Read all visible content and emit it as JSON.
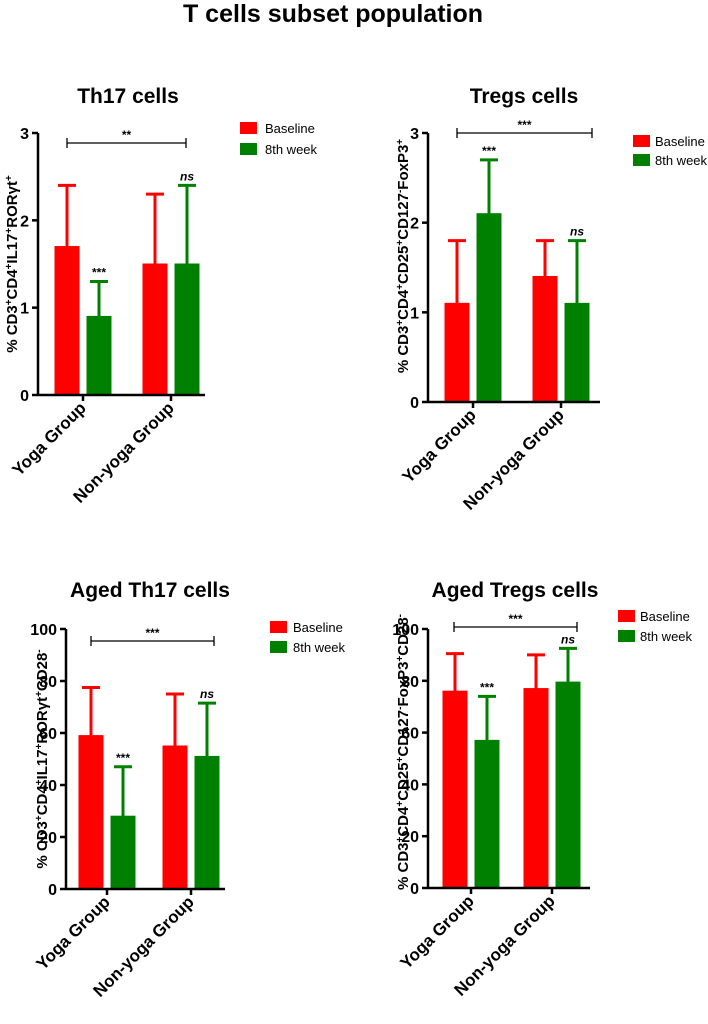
{
  "figure_title": "T cells subset population",
  "colors": {
    "baseline": "#ff0000",
    "baseline_light": "#ee4444",
    "week8": "#008000"
  },
  "chart_data": [
    {
      "type": "bar",
      "title": "Th17 cells",
      "ylabel_parts": [
        [
          "% CD3",
          ""
        ],
        [
          "+",
          "sup"
        ],
        [
          "CD4",
          ""
        ],
        [
          "+",
          "sup"
        ],
        [
          "IL17",
          ""
        ],
        [
          "+",
          "sup"
        ],
        [
          "RORγt",
          ""
        ],
        [
          "+",
          "sup"
        ]
      ],
      "categories": [
        "Yoga Group",
        "Non-yoga Group"
      ],
      "ylim": [
        0,
        3
      ],
      "yticks": [
        0,
        1,
        2,
        3
      ],
      "series": [
        {
          "name": "Baseline",
          "values": [
            1.7,
            1.5
          ],
          "errors": [
            0.7,
            0.8
          ]
        },
        {
          "name": "8th week",
          "values": [
            0.9,
            1.5
          ],
          "errors": [
            0.4,
            0.9
          ]
        }
      ],
      "bar_annotations": [
        [
          "",
          ""
        ],
        [
          "***",
          "ns"
        ]
      ],
      "bracket_label": "**",
      "legend": [
        "Baseline",
        "8th week"
      ],
      "legend_placement": "top-right"
    },
    {
      "type": "bar",
      "title": "Tregs cells",
      "ylabel_parts": [
        [
          "% CD3",
          ""
        ],
        [
          "+",
          "sup"
        ],
        [
          "CD4",
          ""
        ],
        [
          "+",
          "sup"
        ],
        [
          "CD25",
          ""
        ],
        [
          "+",
          "sup"
        ],
        [
          "CD127",
          ""
        ],
        [
          "-",
          "sup"
        ],
        [
          "FoxP3",
          ""
        ],
        [
          "+",
          "sup"
        ]
      ],
      "categories": [
        "Yoga Group",
        "Non-yoga Group"
      ],
      "ylim": [
        0,
        3
      ],
      "yticks": [
        0,
        1,
        2,
        3
      ],
      "series": [
        {
          "name": "Baseline",
          "values": [
            1.1,
            1.4
          ],
          "errors": [
            0.7,
            0.4
          ]
        },
        {
          "name": "8th week",
          "values": [
            2.1,
            1.1
          ],
          "errors": [
            0.6,
            0.7
          ]
        }
      ],
      "bar_annotations": [
        [
          "",
          ""
        ],
        [
          "***",
          "ns"
        ]
      ],
      "bracket_label": "***",
      "legend": [
        "Baseline",
        "8th week"
      ],
      "legend_placement": "top-right"
    },
    {
      "type": "bar",
      "title": "Aged Th17 cells",
      "ylabel_parts": [
        [
          "% CD3",
          ""
        ],
        [
          "+",
          "sup"
        ],
        [
          "CD4",
          ""
        ],
        [
          "+",
          "sup"
        ],
        [
          "IL17",
          ""
        ],
        [
          "+",
          "sup"
        ],
        [
          "RORγt",
          ""
        ],
        [
          "+",
          "sup"
        ],
        [
          "CD28",
          ""
        ],
        [
          "-",
          "sup"
        ]
      ],
      "categories": [
        "Yoga Group",
        "Non-yoga Group"
      ],
      "ylim": [
        0,
        100
      ],
      "yticks": [
        0,
        20,
        40,
        60,
        80,
        100
      ],
      "series": [
        {
          "name": "Baseline",
          "values": [
            59,
            55
          ],
          "errors": [
            18.5,
            20
          ]
        },
        {
          "name": "8th week",
          "values": [
            28,
            51
          ],
          "errors": [
            19,
            20.5
          ]
        }
      ],
      "bar_annotations": [
        [
          "",
          ""
        ],
        [
          "***",
          "ns"
        ]
      ],
      "bracket_label": "***",
      "legend": [
        "Baseline",
        "8th week"
      ],
      "legend_placement": "top-right"
    },
    {
      "type": "bar",
      "title": "Aged Tregs cells",
      "ylabel_parts": [
        [
          "% CD3",
          ""
        ],
        [
          "+",
          "sup"
        ],
        [
          "CD4",
          ""
        ],
        [
          "+",
          "sup"
        ],
        [
          "CD25",
          ""
        ],
        [
          "+",
          "sup"
        ],
        [
          "CD127",
          ""
        ],
        [
          "-",
          "sup"
        ],
        [
          "FoxP3",
          ""
        ],
        [
          "+",
          "sup"
        ],
        [
          "CD28",
          ""
        ],
        [
          "-",
          "sup"
        ]
      ],
      "categories": [
        "Yoga Group",
        "Non-yoga Group"
      ],
      "ylim": [
        0,
        100
      ],
      "yticks": [
        0,
        20,
        40,
        60,
        80,
        100
      ],
      "series": [
        {
          "name": "Baseline",
          "values": [
            76,
            77
          ],
          "errors": [
            14.5,
            13
          ]
        },
        {
          "name": "8th week",
          "values": [
            57,
            79.5
          ],
          "errors": [
            17,
            13
          ]
        }
      ],
      "bar_annotations": [
        [
          "",
          ""
        ],
        [
          "***",
          "ns"
        ]
      ],
      "bracket_label": "***",
      "legend": [
        "Baseline",
        "8th week"
      ],
      "legend_placement": "top-right"
    }
  ]
}
